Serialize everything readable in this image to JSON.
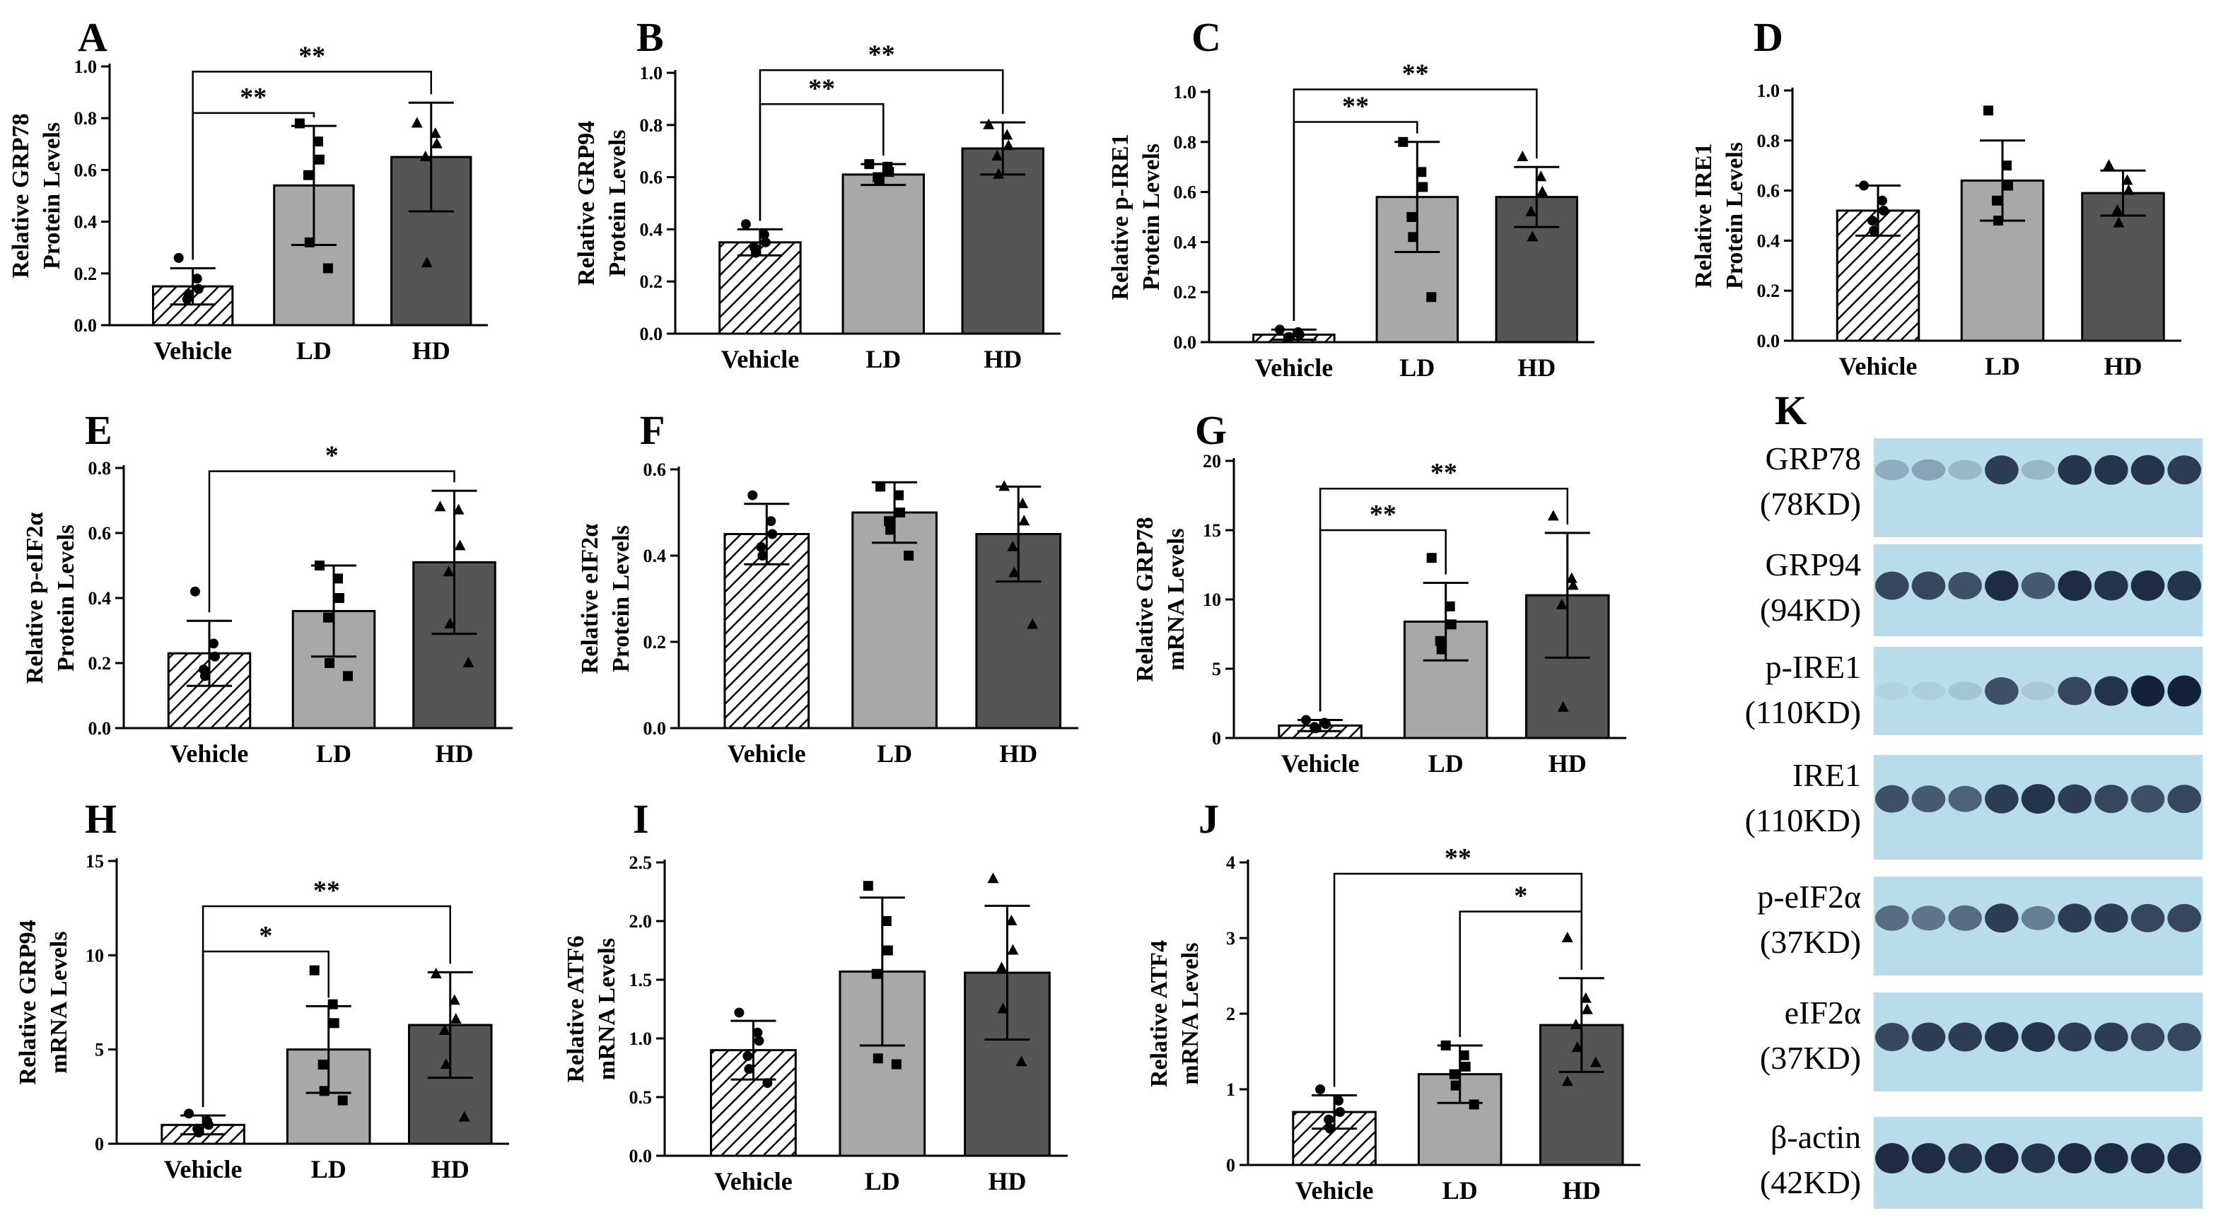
{
  "figure": {
    "blot_panel_letter": "K",
    "blot_labels": [
      {
        "protein": "GRP78",
        "size": "(78KD)"
      },
      {
        "protein": "GRP94",
        "size": "(94KD)"
      },
      {
        "protein": "p-IRE1",
        "size": "(110KD)"
      },
      {
        "protein": "IRE1",
        "size": "(110KD)"
      },
      {
        "protein": "p-eIF2α",
        "size": "(37KD)"
      },
      {
        "protein": "eIF2α",
        "size": "(37KD)"
      },
      {
        "protein": "β-actin",
        "size": "(42KD)"
      }
    ],
    "colors": {
      "vehicle": "#ffffff",
      "ld": "#a8a8a8",
      "hd": "#555555",
      "blot_bg": "#b9dcea",
      "band": "#14213a"
    }
  },
  "chart_data": [
    {
      "panel": "A",
      "type": "bar",
      "categories": [
        "Vehicle",
        "LD",
        "HD"
      ],
      "values": [
        0.15,
        0.54,
        0.65
      ],
      "errors": [
        0.07,
        0.23,
        0.21
      ],
      "ylabel": [
        "Relative GRP78",
        "Protein Levels"
      ],
      "ylim": [
        0,
        1.0
      ],
      "yticks": [
        "0.0",
        "0.2",
        "0.4",
        "0.6",
        "0.8",
        "1.0"
      ],
      "tick_values": [
        0,
        0.2,
        0.4,
        0.6,
        0.8,
        1.0
      ],
      "points": [
        [
          0.26,
          0.18,
          0.14,
          0.1,
          0.12
        ],
        [
          0.78,
          0.71,
          0.64,
          0.58,
          0.32,
          0.22
        ],
        [
          0.78,
          0.74,
          0.7,
          0.65,
          0.24
        ]
      ],
      "sig": [
        {
          "from": 0,
          "to": 1,
          "label": "**",
          "level": 0.82
        },
        {
          "from": 0,
          "to": 2,
          "label": "**",
          "level": 0.98
        }
      ]
    },
    {
      "panel": "B",
      "type": "bar",
      "categories": [
        "Vehicle",
        "LD",
        "HD"
      ],
      "values": [
        0.35,
        0.61,
        0.71
      ],
      "errors": [
        0.05,
        0.04,
        0.1
      ],
      "ylabel": [
        "Relative GRP94",
        "Protein Levels"
      ],
      "ylim": [
        0,
        1.0
      ],
      "yticks": [
        "0.0",
        "0.2",
        "0.4",
        "0.6",
        "0.8",
        "1.0"
      ],
      "tick_values": [
        0,
        0.2,
        0.4,
        0.6,
        0.8,
        1.0
      ],
      "points": [
        [
          0.42,
          0.38,
          0.35,
          0.33,
          0.31
        ],
        [
          0.65,
          0.64,
          0.62,
          0.6,
          0.59
        ],
        [
          0.8,
          0.76,
          0.72,
          0.68,
          0.61
        ]
      ],
      "sig": [
        {
          "from": 0,
          "to": 1,
          "label": "**",
          "level": 0.88
        },
        {
          "from": 0,
          "to": 2,
          "label": "**",
          "level": 1.01
        }
      ]
    },
    {
      "panel": "C",
      "type": "bar",
      "categories": [
        "Vehicle",
        "LD",
        "HD"
      ],
      "values": [
        0.03,
        0.58,
        0.58
      ],
      "errors": [
        0.02,
        0.22,
        0.12
      ],
      "ylabel": [
        "Relative p-IRE1",
        "Protein Levels"
      ],
      "ylim": [
        0,
        1.0
      ],
      "yticks": [
        "0.0",
        "0.2",
        "0.4",
        "0.6",
        "0.8",
        "1.0"
      ],
      "tick_values": [
        0,
        0.2,
        0.4,
        0.6,
        0.8,
        1.0
      ],
      "points": [
        [
          0.05,
          0.04,
          0.03,
          0.02,
          0.02
        ],
        [
          0.8,
          0.68,
          0.62,
          0.5,
          0.42,
          0.18
        ],
        [
          0.74,
          0.66,
          0.6,
          0.52,
          0.42
        ]
      ],
      "sig": [
        {
          "from": 0,
          "to": 1,
          "label": "**",
          "level": 0.88
        },
        {
          "from": 0,
          "to": 2,
          "label": "**",
          "level": 1.01
        }
      ]
    },
    {
      "panel": "D",
      "type": "bar",
      "categories": [
        "Vehicle",
        "LD",
        "HD"
      ],
      "values": [
        0.52,
        0.64,
        0.59
      ],
      "errors": [
        0.1,
        0.16,
        0.09
      ],
      "ylabel": [
        "Relative IRE1",
        "Protein Levels"
      ],
      "ylim": [
        0,
        1.0
      ],
      "yticks": [
        "0.0",
        "0.2",
        "0.4",
        "0.6",
        "0.8",
        "1.0"
      ],
      "tick_values": [
        0,
        0.2,
        0.4,
        0.6,
        0.8,
        1.0
      ],
      "points": [
        [
          0.62,
          0.56,
          0.52,
          0.48,
          0.44
        ],
        [
          0.92,
          0.7,
          0.62,
          0.56,
          0.48
        ],
        [
          0.7,
          0.64,
          0.6,
          0.52,
          0.47
        ]
      ],
      "sig": []
    },
    {
      "panel": "E",
      "type": "bar",
      "categories": [
        "Vehicle",
        "LD",
        "HD"
      ],
      "values": [
        0.23,
        0.36,
        0.51
      ],
      "errors": [
        0.1,
        0.14,
        0.22
      ],
      "ylabel": [
        "Relative p-eIF2α",
        "Protein Levels"
      ],
      "ylim": [
        0,
        0.8
      ],
      "yticks": [
        "0.0",
        "0.2",
        "0.4",
        "0.6",
        "0.8"
      ],
      "tick_values": [
        0,
        0.2,
        0.4,
        0.6,
        0.8
      ],
      "points": [
        [
          0.42,
          0.26,
          0.22,
          0.18,
          0.16
        ],
        [
          0.5,
          0.46,
          0.4,
          0.34,
          0.2,
          0.16
        ],
        [
          0.68,
          0.67,
          0.56,
          0.48,
          0.32,
          0.2
        ]
      ],
      "sig": [
        {
          "from": 0,
          "to": 2,
          "label": "*",
          "level": 0.79
        }
      ]
    },
    {
      "panel": "F",
      "type": "bar",
      "categories": [
        "Vehicle",
        "LD",
        "HD"
      ],
      "values": [
        0.45,
        0.5,
        0.45
      ],
      "errors": [
        0.07,
        0.07,
        0.11
      ],
      "ylabel": [
        "Relative eIF2α",
        "Protein Levels"
      ],
      "ylim": [
        0,
        0.6
      ],
      "yticks": [
        "0.0",
        "0.2",
        "0.4",
        "0.6"
      ],
      "tick_values": [
        0,
        0.2,
        0.4,
        0.6
      ],
      "points": [
        [
          0.54,
          0.48,
          0.45,
          0.42,
          0.4
        ],
        [
          0.56,
          0.54,
          0.5,
          0.48,
          0.46,
          0.4
        ],
        [
          0.56,
          0.52,
          0.48,
          0.42,
          0.36,
          0.24
        ]
      ],
      "sig": []
    },
    {
      "panel": "G",
      "type": "bar",
      "categories": [
        "Vehicle",
        "LD",
        "HD"
      ],
      "values": [
        0.9,
        8.4,
        10.3
      ],
      "errors": [
        0.4,
        2.8,
        4.5
      ],
      "ylabel": [
        "Relative GRP78",
        "mRNA Levels"
      ],
      "ylim": [
        0,
        20
      ],
      "yticks": [
        "0",
        "5",
        "10",
        "15",
        "20"
      ],
      "tick_values": [
        0,
        5,
        10,
        15,
        20
      ],
      "points": [
        [
          1.3,
          1.1,
          1.0,
          0.8,
          0.7
        ],
        [
          13.0,
          9.5,
          8.2,
          7.0,
          6.4
        ],
        [
          16.0,
          11.5,
          11.0,
          9.6,
          2.2
        ]
      ],
      "sig": [
        {
          "from": 0,
          "to": 1,
          "label": "**",
          "level": 15.0
        },
        {
          "from": 0,
          "to": 2,
          "label": "**",
          "level": 18.0
        }
      ]
    },
    {
      "panel": "H",
      "type": "bar",
      "categories": [
        "Vehicle",
        "LD",
        "HD"
      ],
      "values": [
        1.0,
        5.0,
        6.3
      ],
      "errors": [
        0.5,
        2.3,
        2.8
      ],
      "ylabel": [
        "Relative GRP94",
        "mRNA Levels"
      ],
      "ylim": [
        0,
        15
      ],
      "yticks": [
        "0",
        "5",
        "10",
        "15"
      ],
      "tick_values": [
        0,
        5,
        10,
        15
      ],
      "points": [
        [
          1.6,
          1.2,
          1.0,
          0.8,
          0.6
        ],
        [
          9.2,
          7.4,
          6.4,
          4.2,
          2.8,
          2.3
        ],
        [
          9.0,
          7.6,
          6.6,
          6.0,
          4.2,
          1.4
        ]
      ],
      "sig": [
        {
          "from": 0,
          "to": 1,
          "label": "*",
          "level": 10.2
        },
        {
          "from": 0,
          "to": 2,
          "label": "**",
          "level": 12.6
        }
      ]
    },
    {
      "panel": "I",
      "type": "bar",
      "categories": [
        "Vehicle",
        "LD",
        "HD"
      ],
      "values": [
        0.9,
        1.57,
        1.56
      ],
      "errors": [
        0.25,
        0.63,
        0.57
      ],
      "ylabel": [
        "Relative ATF6",
        "mRNA Levels"
      ],
      "ylim": [
        0,
        2.5
      ],
      "yticks": [
        "0.0",
        "0.5",
        "1.0",
        "1.5",
        "2.0",
        "2.5"
      ],
      "tick_values": [
        0,
        0.5,
        1.0,
        1.5,
        2.0,
        2.5
      ],
      "points": [
        [
          1.22,
          1.05,
          0.98,
          0.85,
          0.74,
          0.62
        ],
        [
          2.3,
          2.0,
          1.75,
          1.55,
          0.83,
          0.78
        ],
        [
          2.36,
          2.0,
          1.75,
          1.6,
          1.25,
          0.8
        ]
      ],
      "sig": []
    },
    {
      "panel": "J",
      "type": "bar",
      "categories": [
        "Vehicle",
        "LD",
        "HD"
      ],
      "values": [
        0.7,
        1.2,
        1.85
      ],
      "errors": [
        0.22,
        0.38,
        0.62
      ],
      "ylabel": [
        "Relative ATF4",
        "mRNA Levels"
      ],
      "ylim": [
        0,
        4
      ],
      "yticks": [
        "0",
        "1",
        "2",
        "3",
        "4"
      ],
      "tick_values": [
        0,
        1,
        2,
        3,
        4
      ],
      "points": [
        [
          1.0,
          0.85,
          0.7,
          0.6,
          0.48
        ],
        [
          1.58,
          1.45,
          1.3,
          1.2,
          1.05,
          0.8
        ],
        [
          3.0,
          2.2,
          2.05,
          1.85,
          1.55,
          1.35,
          1.1
        ]
      ],
      "sig": [
        {
          "from": 1,
          "to": 2,
          "label": "*",
          "level": 3.35
        },
        {
          "from": 0,
          "to": 2,
          "label": "**",
          "level": 3.85
        }
      ]
    }
  ]
}
